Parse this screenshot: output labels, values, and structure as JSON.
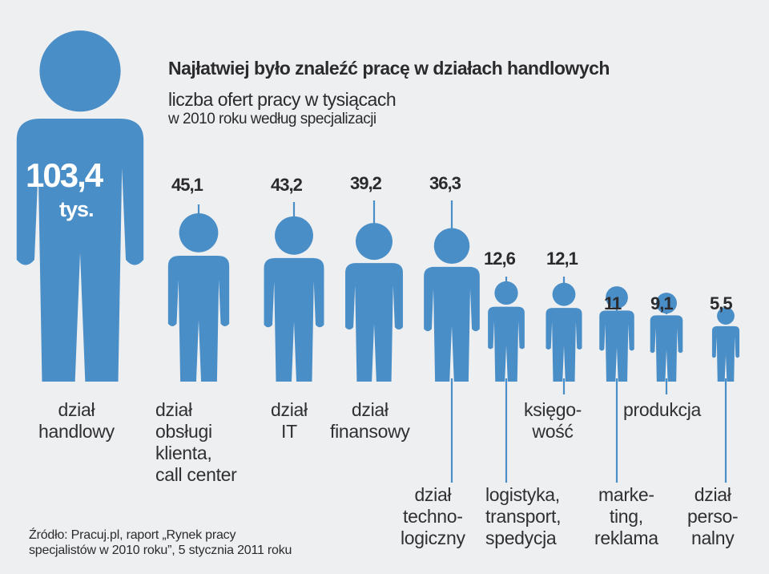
{
  "chart_data": {
    "type": "bar",
    "title": "Najłatwiej było znaleźć pracę w działach handlowych",
    "subtitle": "liczba ofert pracy w tysiącach",
    "subtitle2": "w 2010 roku według specjalizacji",
    "unit": "tys.",
    "colors": {
      "figure": "#4a8ec7",
      "line": "#4a8ec7",
      "text": "#2b2b2e"
    },
    "categories": [
      "dział\nhandlowy",
      "dział\nobsługi\nklienta,\ncall center",
      "dział\nIT",
      "dział\nfinansowy",
      "dział\ntechno-\nlogiczny",
      "logistyka,\ntransport,\nspedycja",
      "księgo-\nwość",
      "marke-\nting,\nreklama",
      "produkcja",
      "dział\nperso-\nnalny"
    ],
    "values": [
      103.4,
      45.1,
      43.2,
      39.2,
      36.3,
      12.6,
      12.1,
      11,
      9.1,
      5.5
    ],
    "value_labels": [
      "103,4",
      "45,1",
      "43,2",
      "39,2",
      "36,3",
      "12,6",
      "12,1",
      "11",
      "9,1",
      "5,5"
    ]
  },
  "source": "Źródło: Pracuj.pl, raport „Rynek pracy\nspecjalistów w 2010 roku”, 5 stycznia 2011 roku"
}
